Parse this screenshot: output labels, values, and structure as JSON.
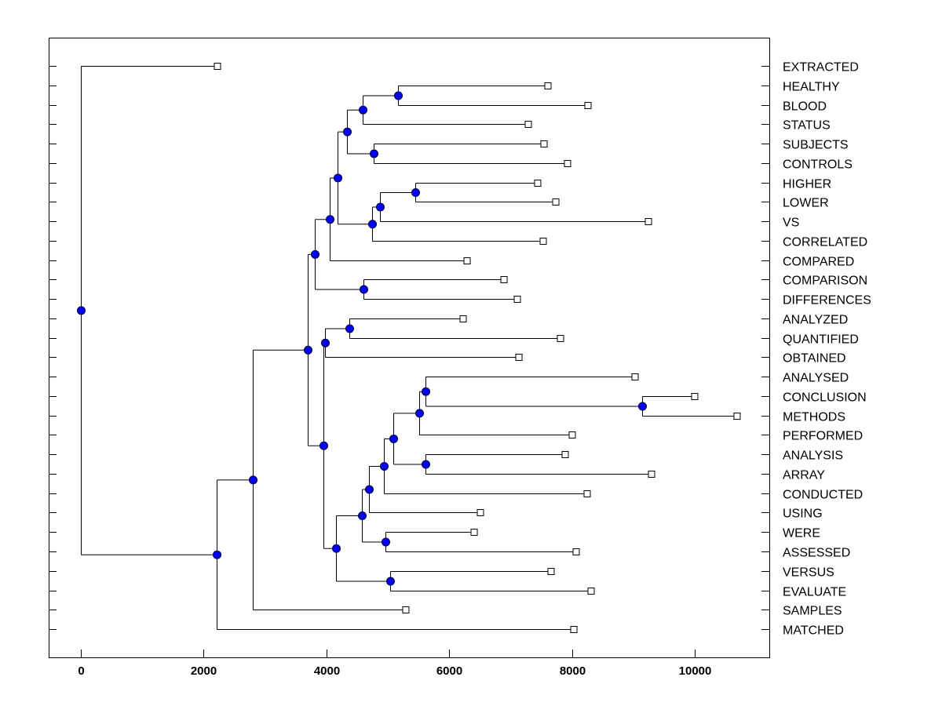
{
  "chart_data": {
    "type": "dendrogram",
    "title": "",
    "xlabel": "",
    "ylabel": "",
    "xlim": [
      -520,
      11240
    ],
    "xticks": [
      0,
      2000,
      4000,
      6000,
      8000,
      10000
    ],
    "xtick_labels": [
      "0",
      "2000",
      "4000",
      "6000",
      "8000",
      "10000"
    ],
    "colors": {
      "node": "#0000ff",
      "leaf": "#ffffff",
      "line": "#000000"
    },
    "leaves": [
      {
        "label": "EXTRACTED",
        "value": 2225
      },
      {
        "label": "HEALTHY",
        "value": 7609
      },
      {
        "label": "BLOOD",
        "value": 8261
      },
      {
        "label": "STATUS",
        "value": 7289
      },
      {
        "label": "SUBJECTS",
        "value": 7545
      },
      {
        "label": "CONTROLS",
        "value": 7928
      },
      {
        "label": "HIGHER",
        "value": 7442
      },
      {
        "label": "LOWER",
        "value": 7737
      },
      {
        "label": "VS",
        "value": 9246
      },
      {
        "label": "CORRELATED",
        "value": 7532
      },
      {
        "label": "COMPARED",
        "value": 6292
      },
      {
        "label": "COMPARISON",
        "value": 6893
      },
      {
        "label": "DIFFERENCES",
        "value": 7110
      },
      {
        "label": "ANALYZED",
        "value": 6228
      },
      {
        "label": "QUANTIFIED",
        "value": 7813
      },
      {
        "label": "OBTAINED",
        "value": 7136
      },
      {
        "label": "ANALYSED",
        "value": 9028
      },
      {
        "label": "CONCLUSION",
        "value": 10000
      },
      {
        "label": "METHODS",
        "value": 10690
      },
      {
        "label": "PERFORMED",
        "value": 8005
      },
      {
        "label": "ANALYSIS",
        "value": 7890
      },
      {
        "label": "ARRAY",
        "value": 9297
      },
      {
        "label": "CONDUCTED",
        "value": 8248
      },
      {
        "label": "USING",
        "value": 6509
      },
      {
        "label": "WERE",
        "value": 6407
      },
      {
        "label": "ASSESSED",
        "value": 8069
      },
      {
        "label": "VERSUS",
        "value": 7660
      },
      {
        "label": "EVALUATE",
        "value": 8312
      },
      {
        "label": "SAMPLES",
        "value": 5294
      },
      {
        "label": "MATCHED",
        "value": 8031
      }
    ],
    "tree": {
      "height": 0,
      "children": [
        "EXTRACTED",
        {
          "height": 2212,
          "children": [
            {
              "height": 2800,
              "children": [
                {
                  "height": 3696,
                  "children": [
                    {
                      "height": 3811,
                      "children": [
                        {
                          "height": 4054,
                          "children": [
                            {
                              "height": 4182,
                              "children": [
                                {
                                  "height": 4335,
                                  "children": [
                                    {
                                      "height": 4591,
                                      "children": [
                                        {
                                          "height": 5166,
                                          "children": [
                                            "HEALTHY",
                                            "BLOOD"
                                          ]
                                        },
                                        "STATUS"
                                      ]
                                    },
                                    {
                                      "height": 4770,
                                      "children": [
                                        "SUBJECTS",
                                        "CONTROLS"
                                      ]
                                    }
                                  ]
                                },
                                {
                                  "height": 4744,
                                  "children": [
                                    {
                                      "height": 4872,
                                      "children": [
                                        {
                                          "height": 5448,
                                          "children": [
                                            "HIGHER",
                                            "LOWER"
                                          ]
                                        },
                                        "VS"
                                      ]
                                    },
                                    "CORRELATED"
                                  ]
                                }
                              ]
                            },
                            "COMPARED"
                          ]
                        },
                        {
                          "height": 4604,
                          "children": [
                            "COMPARISON",
                            "DIFFERENCES"
                          ]
                        }
                      ]
                    },
                    {
                      "height": 3951,
                      "children": [
                        {
                          "height": 3977,
                          "children": [
                            {
                              "height": 4373,
                              "children": [
                                "ANALYZED",
                                "QUANTIFIED"
                              ]
                            },
                            "OBTAINED"
                          ]
                        },
                        {
                          "height": 4156,
                          "children": [
                            {
                              "height": 4578,
                              "children": [
                                {
                                  "height": 4693,
                                  "children": [
                                    {
                                      "height": 4936,
                                      "children": [
                                        {
                                          "height": 5090,
                                          "children": [
                                            {
                                              "height": 5512,
                                              "children": [
                                                {
                                                  "height": 5614,
                                                  "children": [
                                                    "ANALYSED",
                                                    {
                                                      "height": 9143,
                                                      "children": [
                                                        "CONCLUSION",
                                                        "METHODS"
                                                      ]
                                                    }
                                                  ]
                                                },
                                                "PERFORMED"
                                              ]
                                            },
                                            {
                                              "height": 5614,
                                              "children": [
                                                "ANALYSIS",
                                                "ARRAY"
                                              ]
                                            }
                                          ]
                                        },
                                        "CONDUCTED"
                                      ]
                                    },
                                    "USING"
                                  ]
                                },
                                {
                                  "height": 4962,
                                  "children": [
                                    "WERE",
                                    "ASSESSED"
                                  ]
                                }
                              ]
                            },
                            {
                              "height": 5038,
                              "children": [
                                "VERSUS",
                                "EVALUATE"
                              ]
                            }
                          ]
                        }
                      ]
                    }
                  ]
                },
                "SAMPLES"
              ]
            },
            "MATCHED"
          ]
        }
      ]
    }
  }
}
